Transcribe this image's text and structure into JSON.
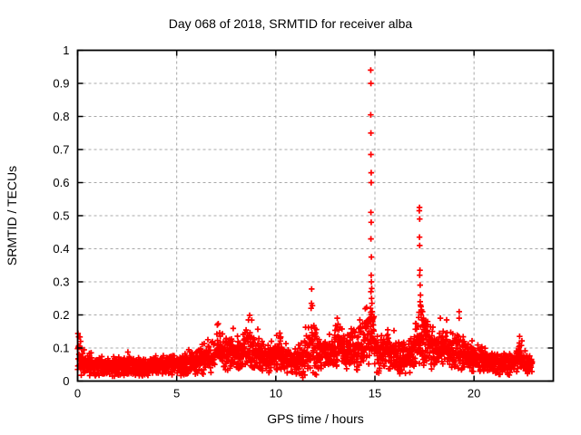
{
  "title": "Day 068 of 2018, SRMTID for receiver alba",
  "axes": {
    "xlabel": "GPS time / hours",
    "ylabel": "SRMTID / TECUs",
    "xlim": [
      0,
      24
    ],
    "ylim": [
      0,
      1
    ],
    "xtick_values": [
      0,
      5,
      10,
      15,
      20
    ],
    "xtick_labels": [
      "0",
      "5",
      "10",
      "15",
      "20"
    ],
    "ytick_values": [
      0,
      0.1,
      0.2,
      0.3,
      0.4,
      0.5,
      0.6,
      0.7,
      0.8,
      0.9,
      1
    ],
    "ytick_labels": [
      "0",
      "0.1",
      "0.2",
      "0.3",
      "0.4",
      "0.5",
      "0.6",
      "0.7",
      "0.8",
      "0.9",
      "1"
    ]
  },
  "style": {
    "marker_color": "#ff0000",
    "grid_color": "#a8a8a8",
    "border_color": "#000000",
    "background": "#ffffff"
  },
  "chart_data": {
    "type": "scatter",
    "title": "Day 068 of 2018, SRMTID for receiver alba",
    "xlabel": "GPS time / hours",
    "ylabel": "SRMTID / TECUs",
    "xlim": [
      0,
      24
    ],
    "ylim": [
      0,
      1
    ],
    "grid": true,
    "legend": "none",
    "marker": "+",
    "color": "#ff0000",
    "description": "Dense scatter of SRMTID values vs GPS time; noisy baseline 0.02-0.12 TECUs with bumps near hours 7, 8.6, 10.2, 11.8, 13.1, 18-19 and large vertical outlier spikes at hour 14.8 (max 0.94) and hour 17.25 (max 0.53); data ends near hour 23.",
    "series": [
      {
        "name": "SRMTID",
        "t_range": [
          0.0,
          22.95
        ],
        "sample_step_hours": 0.018,
        "passes": 2,
        "seed": 2018,
        "baseline_nodes": [
          [
            0.0,
            0.07
          ],
          [
            0.3,
            0.055
          ],
          [
            0.8,
            0.045
          ],
          [
            2.0,
            0.042
          ],
          [
            3.5,
            0.045
          ],
          [
            5.0,
            0.05
          ],
          [
            6.0,
            0.06
          ],
          [
            6.8,
            0.07
          ],
          [
            7.05,
            0.1
          ],
          [
            7.4,
            0.08
          ],
          [
            8.0,
            0.08
          ],
          [
            8.6,
            0.105
          ],
          [
            9.1,
            0.08
          ],
          [
            9.6,
            0.065
          ],
          [
            10.2,
            0.085
          ],
          [
            10.8,
            0.06
          ],
          [
            11.4,
            0.065
          ],
          [
            11.8,
            0.11
          ],
          [
            12.2,
            0.08
          ],
          [
            12.6,
            0.075
          ],
          [
            13.1,
            0.1
          ],
          [
            13.6,
            0.09
          ],
          [
            14.2,
            0.1
          ],
          [
            14.75,
            0.16
          ],
          [
            14.95,
            0.13
          ],
          [
            15.2,
            0.08
          ],
          [
            15.65,
            0.09
          ],
          [
            16.1,
            0.07
          ],
          [
            16.7,
            0.08
          ],
          [
            17.25,
            0.13
          ],
          [
            17.5,
            0.12
          ],
          [
            18.0,
            0.1
          ],
          [
            18.5,
            0.1
          ],
          [
            19.0,
            0.09
          ],
          [
            19.5,
            0.08
          ],
          [
            20.0,
            0.07
          ],
          [
            20.6,
            0.06
          ],
          [
            21.2,
            0.055
          ],
          [
            21.8,
            0.05
          ],
          [
            22.3,
            0.075
          ],
          [
            22.6,
            0.055
          ],
          [
            22.95,
            0.05
          ]
        ],
        "spread_nodes": [
          [
            0.0,
            0.045
          ],
          [
            0.5,
            0.028
          ],
          [
            3.0,
            0.025
          ],
          [
            5.0,
            0.03
          ],
          [
            7.0,
            0.05
          ],
          [
            8.0,
            0.045
          ],
          [
            8.6,
            0.055
          ],
          [
            9.5,
            0.04
          ],
          [
            10.2,
            0.045
          ],
          [
            11.0,
            0.035
          ],
          [
            11.8,
            0.075
          ],
          [
            12.5,
            0.04
          ],
          [
            13.1,
            0.055
          ],
          [
            14.0,
            0.05
          ],
          [
            14.8,
            0.09
          ],
          [
            15.3,
            0.045
          ],
          [
            16.5,
            0.045
          ],
          [
            17.3,
            0.075
          ],
          [
            18.0,
            0.055
          ],
          [
            19.0,
            0.05
          ],
          [
            20.0,
            0.04
          ],
          [
            21.0,
            0.03
          ],
          [
            22.0,
            0.03
          ],
          [
            22.3,
            0.04
          ],
          [
            22.95,
            0.03
          ]
        ],
        "outlier_points": [
          [
            14.79,
            0.94
          ],
          [
            14.8,
            0.9
          ],
          [
            14.79,
            0.805
          ],
          [
            14.8,
            0.75
          ],
          [
            14.8,
            0.685
          ],
          [
            14.81,
            0.63
          ],
          [
            14.81,
            0.6
          ],
          [
            14.8,
            0.51
          ],
          [
            14.81,
            0.48
          ],
          [
            14.8,
            0.43
          ],
          [
            14.82,
            0.375
          ],
          [
            14.81,
            0.32
          ],
          [
            14.82,
            0.3
          ],
          [
            14.84,
            0.28
          ],
          [
            14.8,
            0.27
          ],
          [
            14.83,
            0.25
          ],
          [
            14.85,
            0.235
          ],
          [
            14.78,
            0.22
          ],
          [
            14.86,
            0.21
          ],
          [
            14.82,
            0.195
          ],
          [
            14.88,
            0.18
          ],
          [
            14.9,
            0.17
          ],
          [
            14.79,
            0.165
          ],
          [
            14.92,
            0.155
          ],
          [
            17.25,
            0.525
          ],
          [
            17.24,
            0.515
          ],
          [
            17.26,
            0.49
          ],
          [
            17.25,
            0.435
          ],
          [
            17.26,
            0.41
          ],
          [
            17.27,
            0.335
          ],
          [
            17.26,
            0.32
          ],
          [
            17.28,
            0.29
          ],
          [
            17.3,
            0.26
          ],
          [
            17.28,
            0.24
          ],
          [
            17.32,
            0.225
          ],
          [
            17.35,
            0.215
          ],
          [
            17.3,
            0.23
          ],
          [
            17.4,
            0.21
          ],
          [
            17.33,
            0.2
          ],
          [
            17.45,
            0.19
          ],
          [
            17.38,
            0.185
          ],
          [
            17.5,
            0.175
          ],
          [
            17.42,
            0.17
          ],
          [
            17.55,
            0.165
          ],
          [
            17.48,
            0.155
          ],
          [
            17.6,
            0.15
          ],
          [
            11.8,
            0.235
          ],
          [
            11.78,
            0.22
          ],
          [
            13.1,
            0.19
          ],
          [
            8.62,
            0.185
          ],
          [
            7.05,
            0.17
          ],
          [
            15.65,
            0.155
          ],
          [
            10.2,
            0.145
          ],
          [
            19.25,
            0.21
          ],
          [
            19.25,
            0.19
          ],
          [
            18.3,
            0.19
          ],
          [
            18.62,
            0.185
          ],
          [
            22.3,
            0.135
          ],
          [
            0.15,
            0.12
          ]
        ]
      }
    ]
  }
}
